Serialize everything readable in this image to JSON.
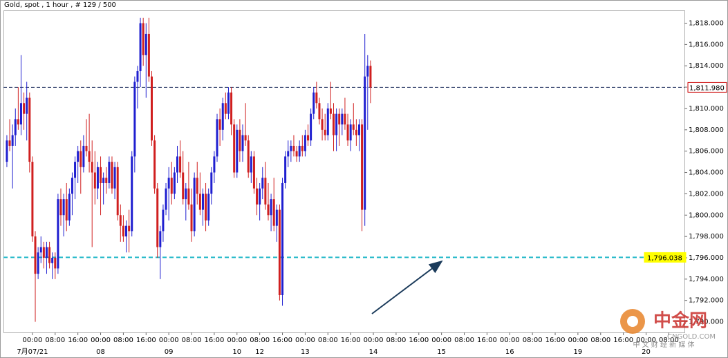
{
  "chart_data": {
    "type": "candlestick",
    "title": "Gold, spot , 1 hour , # 129 / 500",
    "up_color": "#1f1fd0",
    "down_color": "#d01f1f",
    "open": [
      1805.0,
      1807.0,
      1806.5,
      1807.5,
      1809.0,
      1808.5,
      1810.5,
      1809.5,
      1811.0,
      1805.0,
      1798.0,
      1794.5,
      1796.5,
      1797.0,
      1796.0,
      1797.0,
      1795.5,
      1796.0,
      1795.0,
      1801.5,
      1800.0,
      1801.5,
      1799.5,
      1802.0,
      1803.5,
      1805.0,
      1806.0,
      1804.5,
      1806.5,
      1806.0,
      1805.0,
      1804.0,
      1802.5,
      1804.5,
      1803.0,
      1803.5,
      1803.0,
      1805.0,
      1802.5,
      1804.5,
      1800.0,
      1799.0,
      1798.0,
      1799.0,
      1798.5,
      1805.5,
      1812.5,
      1813.5,
      1818.0,
      1815.0,
      1817.0,
      1813.0,
      1807.0,
      1802.5,
      1797.0,
      1798.5,
      1800.5,
      1802.5,
      1803.5,
      1802.0,
      1804.0,
      1805.5,
      1804.0,
      1801.5,
      1802.5,
      1801.0,
      1798.5,
      1803.5,
      1802.0,
      1800.5,
      1802.0,
      1799.5,
      1802.0,
      1804.0,
      1805.5,
      1809.0,
      1808.0,
      1810.5,
      1809.5,
      1811.5,
      1808.5,
      1804.0,
      1808.0,
      1806.0,
      1807.5,
      1807.0,
      1804.0,
      1805.5,
      1802.5,
      1801.0,
      1802.5,
      1803.5,
      1801.0,
      1800.0,
      1801.5,
      1799.0,
      1800.5,
      1792.5,
      1803.0,
      1805.5,
      1806.0,
      1806.5,
      1806.0,
      1805.5,
      1806.5,
      1806.0,
      1807.5,
      1807.0,
      1809.5,
      1811.5,
      1810.5,
      1809.0,
      1808.0,
      1807.5,
      1810.0,
      1809.5,
      1807.5,
      1809.5,
      1808.5,
      1809.5,
      1808.5,
      1807.0,
      1808.5,
      1808.0,
      1807.5,
      1808.5,
      1800.5,
      1813.0,
      1814.0
    ],
    "high": [
      1807.5,
      1809.0,
      1808.5,
      1810.0,
      1812.0,
      1815.0,
      1811.5,
      1812.5,
      1811.5,
      1805.5,
      1798.5,
      1797.0,
      1798.0,
      1797.5,
      1797.5,
      1797.5,
      1796.5,
      1796.5,
      1802.0,
      1802.5,
      1802.0,
      1803.0,
      1802.5,
      1804.0,
      1805.5,
      1806.5,
      1807.0,
      1807.5,
      1809.0,
      1809.5,
      1807.0,
      1806.0,
      1805.0,
      1805.5,
      1804.0,
      1804.5,
      1805.5,
      1805.5,
      1805.0,
      1805.0,
      1801.0,
      1800.0,
      1799.5,
      1800.5,
      1806.0,
      1813.0,
      1814.0,
      1818.5,
      1818.5,
      1818.0,
      1818.5,
      1813.5,
      1807.5,
      1803.0,
      1799.0,
      1801.0,
      1803.0,
      1804.5,
      1805.0,
      1804.5,
      1806.5,
      1807.0,
      1806.0,
      1803.0,
      1805.0,
      1802.5,
      1804.0,
      1805.0,
      1804.0,
      1802.5,
      1803.0,
      1802.5,
      1804.5,
      1806.0,
      1809.5,
      1810.0,
      1811.0,
      1811.5,
      1812.0,
      1812.0,
      1809.0,
      1808.5,
      1809.0,
      1808.5,
      1810.5,
      1807.5,
      1806.0,
      1806.0,
      1803.5,
      1803.0,
      1804.5,
      1805.0,
      1803.0,
      1802.0,
      1803.5,
      1801.0,
      1801.0,
      1803.5,
      1806.0,
      1807.0,
      1807.0,
      1807.5,
      1806.5,
      1807.0,
      1807.5,
      1808.0,
      1808.5,
      1810.0,
      1812.0,
      1812.5,
      1811.0,
      1810.0,
      1809.5,
      1810.5,
      1812.5,
      1810.5,
      1810.0,
      1810.0,
      1810.0,
      1811.0,
      1809.5,
      1809.0,
      1810.5,
      1809.0,
      1809.0,
      1809.0,
      1817.0,
      1815.0,
      1814.5
    ],
    "low": [
      1804.5,
      1806.0,
      1802.5,
      1806.5,
      1808.0,
      1807.5,
      1808.0,
      1807.0,
      1804.0,
      1797.5,
      1790.0,
      1794.0,
      1795.5,
      1795.0,
      1794.5,
      1795.0,
      1794.0,
      1794.0,
      1794.5,
      1799.0,
      1798.0,
      1798.5,
      1799.0,
      1800.0,
      1801.5,
      1803.0,
      1802.0,
      1804.0,
      1805.5,
      1804.0,
      1797.0,
      1801.0,
      1801.5,
      1800.0,
      1801.0,
      1802.0,
      1802.5,
      1802.0,
      1801.5,
      1799.5,
      1797.5,
      1797.5,
      1796.5,
      1796.5,
      1798.0,
      1804.0,
      1810.0,
      1812.0,
      1814.0,
      1811.0,
      1812.5,
      1806.5,
      1802.0,
      1796.0,
      1794.0,
      1797.5,
      1800.0,
      1799.5,
      1801.0,
      1801.5,
      1803.0,
      1803.5,
      1801.0,
      1799.5,
      1800.5,
      1797.5,
      1798.0,
      1801.0,
      1800.0,
      1799.0,
      1798.5,
      1799.0,
      1801.0,
      1803.0,
      1805.0,
      1806.5,
      1807.0,
      1809.0,
      1809.0,
      1807.5,
      1803.5,
      1803.5,
      1805.0,
      1805.0,
      1806.5,
      1803.5,
      1803.0,
      1802.0,
      1800.0,
      1799.5,
      1801.5,
      1800.5,
      1799.5,
      1798.5,
      1798.5,
      1797.5,
      1792.0,
      1791.5,
      1802.5,
      1804.5,
      1805.0,
      1805.5,
      1805.0,
      1805.0,
      1805.5,
      1805.5,
      1806.5,
      1806.5,
      1809.0,
      1810.0,
      1808.5,
      1807.0,
      1807.0,
      1807.0,
      1809.0,
      1806.0,
      1806.0,
      1806.5,
      1807.5,
      1808.0,
      1806.5,
      1806.0,
      1807.5,
      1806.5,
      1806.0,
      1798.5,
      1799.0,
      1808.0,
      1810.5
    ],
    "close": [
      1807.0,
      1806.5,
      1807.5,
      1809.0,
      1808.5,
      1810.5,
      1809.5,
      1811.0,
      1805.0,
      1798.0,
      1794.5,
      1796.5,
      1797.0,
      1796.0,
      1797.0,
      1795.5,
      1796.0,
      1795.0,
      1801.5,
      1800.0,
      1801.5,
      1799.5,
      1802.0,
      1803.5,
      1805.0,
      1806.0,
      1804.5,
      1806.5,
      1806.0,
      1805.0,
      1804.0,
      1802.5,
      1804.5,
      1803.0,
      1803.5,
      1803.0,
      1805.0,
      1802.5,
      1804.5,
      1800.0,
      1799.0,
      1798.0,
      1799.0,
      1798.5,
      1805.5,
      1812.5,
      1813.5,
      1818.0,
      1815.0,
      1817.0,
      1813.0,
      1807.0,
      1802.5,
      1797.0,
      1798.5,
      1800.5,
      1802.5,
      1803.5,
      1802.0,
      1804.0,
      1805.5,
      1804.0,
      1801.5,
      1802.5,
      1801.0,
      1798.5,
      1803.5,
      1802.0,
      1800.5,
      1802.0,
      1799.5,
      1802.0,
      1804.0,
      1805.5,
      1809.0,
      1808.0,
      1810.5,
      1809.5,
      1811.5,
      1808.5,
      1804.0,
      1808.0,
      1806.0,
      1807.5,
      1807.0,
      1804.0,
      1805.5,
      1802.5,
      1801.0,
      1802.5,
      1803.5,
      1801.0,
      1800.0,
      1801.5,
      1799.0,
      1800.5,
      1792.5,
      1803.0,
      1805.5,
      1806.0,
      1806.5,
      1806.0,
      1805.5,
      1806.5,
      1806.0,
      1807.5,
      1807.0,
      1809.5,
      1811.5,
      1810.5,
      1809.0,
      1808.0,
      1807.5,
      1810.0,
      1809.5,
      1807.5,
      1809.5,
      1808.5,
      1809.5,
      1808.5,
      1807.0,
      1808.5,
      1808.0,
      1807.5,
      1808.5,
      1800.5,
      1813.0,
      1814.0,
      1811.98
    ],
    "xlim": [
      -1.2,
      238.5
    ],
    "ylim": [
      1789.0,
      1819.2
    ],
    "yticks": [
      {
        "value": 1790,
        "label": "1,790.000"
      },
      {
        "value": 1792,
        "label": "1,792.000"
      },
      {
        "value": 1794,
        "label": "1,794.000"
      },
      {
        "value": 1796,
        "label": "1,796.000"
      },
      {
        "value": 1798,
        "label": "1,798.000"
      },
      {
        "value": 1800,
        "label": "1,800.000"
      },
      {
        "value": 1802,
        "label": "1,802.000"
      },
      {
        "value": 1804,
        "label": "1,804.000"
      },
      {
        "value": 1806,
        "label": "1,806.000"
      },
      {
        "value": 1808,
        "label": "1,808.000"
      },
      {
        "value": 1810,
        "label": "1,810.000"
      },
      {
        "value": 1812,
        "label": "1,812.000"
      },
      {
        "value": 1814,
        "label": "1,814.000"
      },
      {
        "value": 1816,
        "label": "1,816.000"
      },
      {
        "value": 1818,
        "label": "1,818.000"
      }
    ],
    "xticks": [
      {
        "value": 9,
        "label": "00:00"
      },
      {
        "value": 17,
        "label": "08:00"
      },
      {
        "value": 25,
        "label": "16:00"
      },
      {
        "value": 33,
        "label": "00:00"
      },
      {
        "value": 41,
        "label": "08:00"
      },
      {
        "value": 49,
        "label": "16:00"
      },
      {
        "value": 57,
        "label": "00:00"
      },
      {
        "value": 65,
        "label": "08:00"
      },
      {
        "value": 73,
        "label": "16:00"
      },
      {
        "value": 81,
        "label": "00:00"
      },
      {
        "value": 89,
        "label": "08:00"
      },
      {
        "value": 97,
        "label": "16:00"
      },
      {
        "value": 105,
        "label": "00:00"
      },
      {
        "value": 113,
        "label": "08:00"
      },
      {
        "value": 121,
        "label": "16:00"
      },
      {
        "value": 129,
        "label": "00:00"
      },
      {
        "value": 137,
        "label": "08:00"
      },
      {
        "value": 145,
        "label": "16:00"
      },
      {
        "value": 153,
        "label": "00:00"
      },
      {
        "value": 161,
        "label": "08:00"
      },
      {
        "value": 169,
        "label": "16:00"
      },
      {
        "value": 177,
        "label": "00:00"
      },
      {
        "value": 185,
        "label": "08:00"
      },
      {
        "value": 193,
        "label": "16:00"
      },
      {
        "value": 201,
        "label": "00:00"
      },
      {
        "value": 209,
        "label": "08:00"
      },
      {
        "value": 217,
        "label": "16:00"
      },
      {
        "value": 225,
        "label": "00:00"
      },
      {
        "value": 233,
        "label": "08:00"
      }
    ],
    "date_labels": [
      {
        "value": 9,
        "label": "7月07/21"
      },
      {
        "value": 33,
        "label": "08"
      },
      {
        "value": 57,
        "label": "09"
      },
      {
        "value": 81,
        "label": "10"
      },
      {
        "value": 89,
        "label": "12"
      },
      {
        "value": 105,
        "label": "13"
      },
      {
        "value": 129,
        "label": "14"
      },
      {
        "value": 153,
        "label": "15"
      },
      {
        "value": 177,
        "label": "16"
      },
      {
        "value": 201,
        "label": "19"
      },
      {
        "value": 225,
        "label": "20"
      }
    ],
    "price_lines": [
      {
        "value": 1811.98,
        "label": "1,811.980",
        "color": "#1a2a5a",
        "label_fill": "#ffffff",
        "label_stroke": "#cc0000"
      },
      {
        "value": 1796.038,
        "label": "1,796.038",
        "color": "#22b8c8",
        "label_fill": "#ffff00",
        "label_stroke": "#ffff00"
      }
    ],
    "watermark": {
      "name": "中金网",
      "site": "CNGOLD.COM",
      "tagline": "中 文 财 经 新 媒 体"
    }
  }
}
